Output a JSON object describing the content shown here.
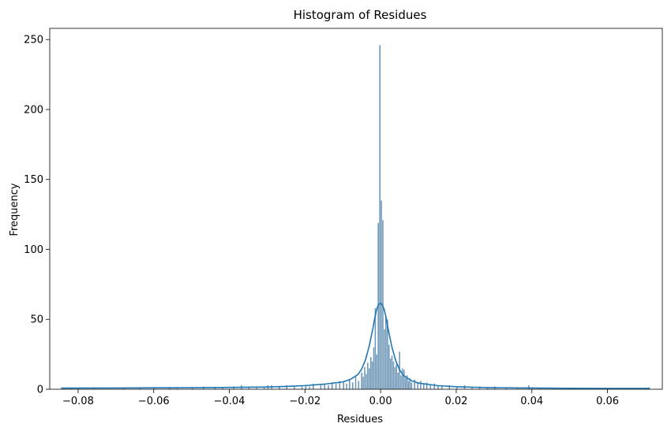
{
  "chart_data": {
    "type": "bar",
    "title": "Histogram of Residues",
    "xlabel": "Residues",
    "ylabel": "Frequency",
    "xlim": [
      -0.0875,
      0.0745
    ],
    "ylim": [
      0,
      258
    ],
    "xticks": [
      -0.08,
      -0.06,
      -0.04,
      -0.02,
      0.0,
      0.02,
      0.04,
      0.06
    ],
    "xtick_labels": [
      "−0.08",
      "−0.06",
      "−0.04",
      "−0.02",
      "0.00",
      "0.02",
      "0.04",
      "0.06"
    ],
    "yticks": [
      0,
      50,
      100,
      150,
      200,
      250
    ],
    "ytick_labels": [
      "0",
      "50",
      "100",
      "150",
      "200",
      "250"
    ],
    "grid": false,
    "legend": "none",
    "bin_width": 0.0004,
    "bar_color": "#6f97b8",
    "bar_edge_color": "#ffffff",
    "kde_color": "#1f77b4",
    "bins": [
      [
        -0.084,
        1
      ],
      [
        -0.082,
        1
      ],
      [
        -0.08,
        1
      ],
      [
        -0.076,
        1
      ],
      [
        -0.068,
        1
      ],
      [
        -0.064,
        1
      ],
      [
        -0.06,
        1
      ],
      [
        -0.056,
        1
      ],
      [
        -0.054,
        1
      ],
      [
        -0.05,
        1
      ],
      [
        -0.047,
        2
      ],
      [
        -0.044,
        1
      ],
      [
        -0.042,
        1
      ],
      [
        -0.039,
        2
      ],
      [
        -0.037,
        3
      ],
      [
        -0.035,
        2
      ],
      [
        -0.033,
        2
      ],
      [
        -0.031,
        2
      ],
      [
        -0.03,
        3
      ],
      [
        -0.029,
        3
      ],
      [
        -0.027,
        2
      ],
      [
        -0.025,
        3
      ],
      [
        -0.023,
        2
      ],
      [
        -0.021,
        2
      ],
      [
        -0.02,
        3
      ],
      [
        -0.019,
        2
      ],
      [
        -0.018,
        4
      ],
      [
        -0.016,
        3
      ],
      [
        -0.015,
        4
      ],
      [
        -0.014,
        3
      ],
      [
        -0.013,
        5
      ],
      [
        -0.012,
        4
      ],
      [
        -0.011,
        6
      ],
      [
        -0.01,
        5
      ],
      [
        -0.0092,
        4
      ],
      [
        -0.0084,
        7
      ],
      [
        -0.0076,
        5
      ],
      [
        -0.0068,
        9
      ],
      [
        -0.006,
        6
      ],
      [
        -0.0052,
        12
      ],
      [
        -0.0048,
        9
      ],
      [
        -0.0044,
        16
      ],
      [
        -0.004,
        11
      ],
      [
        -0.0036,
        19
      ],
      [
        -0.0032,
        15
      ],
      [
        -0.0028,
        23
      ],
      [
        -0.0024,
        20
      ],
      [
        -0.002,
        30
      ],
      [
        -0.0016,
        58
      ],
      [
        -0.0012,
        25
      ],
      [
        -0.0008,
        119
      ],
      [
        -0.0004,
        246
      ],
      [
        0.0,
        135
      ],
      [
        0.0004,
        121
      ],
      [
        0.0008,
        43
      ],
      [
        0.0012,
        52
      ],
      [
        0.0016,
        50
      ],
      [
        0.002,
        32
      ],
      [
        0.0024,
        22
      ],
      [
        0.0028,
        24
      ],
      [
        0.0032,
        20
      ],
      [
        0.0036,
        16
      ],
      [
        0.004,
        18
      ],
      [
        0.0044,
        12
      ],
      [
        0.0048,
        27
      ],
      [
        0.0052,
        10
      ],
      [
        0.0056,
        15
      ],
      [
        0.006,
        14
      ],
      [
        0.0064,
        8
      ],
      [
        0.0068,
        10
      ],
      [
        0.0072,
        6
      ],
      [
        0.0076,
        8
      ],
      [
        0.008,
        5
      ],
      [
        0.0088,
        7
      ],
      [
        0.0096,
        5
      ],
      [
        0.0104,
        6
      ],
      [
        0.0112,
        4
      ],
      [
        0.012,
        5
      ],
      [
        0.013,
        3
      ],
      [
        0.014,
        4
      ],
      [
        0.015,
        3
      ],
      [
        0.016,
        2
      ],
      [
        0.018,
        3
      ],
      [
        0.02,
        2
      ],
      [
        0.022,
        3
      ],
      [
        0.024,
        2
      ],
      [
        0.026,
        2
      ],
      [
        0.028,
        1
      ],
      [
        0.03,
        2
      ],
      [
        0.033,
        1
      ],
      [
        0.036,
        1
      ],
      [
        0.039,
        3
      ],
      [
        0.042,
        1
      ],
      [
        0.046,
        1
      ],
      [
        0.05,
        1
      ],
      [
        0.054,
        1
      ],
      [
        0.058,
        1
      ],
      [
        0.062,
        1
      ],
      [
        0.066,
        1
      ],
      [
        0.07,
        1
      ],
      [
        0.0708,
        1
      ]
    ],
    "kde_x": [
      -0.0845,
      -0.07,
      -0.06,
      -0.05,
      -0.04,
      -0.03,
      -0.025,
      -0.02,
      -0.015,
      -0.01,
      -0.008,
      -0.006,
      -0.005,
      -0.004,
      -0.003,
      -0.002,
      -0.0015,
      -0.001,
      -0.0005,
      0.0,
      0.0005,
      0.001,
      0.0015,
      0.002,
      0.003,
      0.004,
      0.005,
      0.006,
      0.008,
      0.01,
      0.015,
      0.02,
      0.025,
      0.03,
      0.04,
      0.05,
      0.06,
      0.0712
    ],
    "kde_y": [
      0.8,
      0.9,
      1.0,
      1.1,
      1.3,
      1.6,
      2.0,
      2.6,
      3.6,
      5.2,
      7.0,
      10.5,
      14.5,
      21.0,
      31.0,
      44.0,
      51.5,
      57.5,
      60.8,
      61.4,
      60.2,
      56.5,
      50.5,
      43.0,
      30.0,
      20.5,
      14.0,
      10.0,
      6.3,
      4.4,
      2.6,
      1.8,
      1.4,
      1.1,
      0.9,
      0.7,
      0.6,
      0.6
    ]
  }
}
